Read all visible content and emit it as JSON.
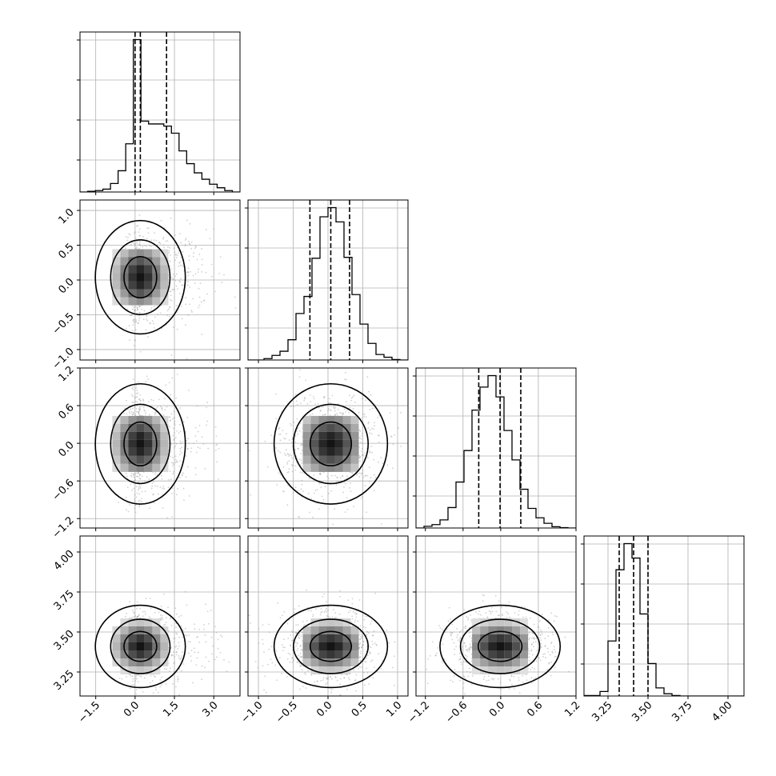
{
  "chart_data": {
    "type": "corner",
    "grid": true,
    "parameters": [
      {
        "ticks": [
          -1.5,
          0.0,
          1.5,
          3.0
        ],
        "tick_labels": [
          "−1.5",
          "0.0",
          "1.5",
          "3.0"
        ],
        "range": [
          -2.1,
          4.0
        ],
        "quantiles": [
          0.0,
          0.2,
          1.2
        ],
        "hist_counts": [
          0,
          1,
          2,
          4,
          12,
          30,
          68,
          215,
          100,
          96,
          96,
          93,
          83,
          58,
          40,
          27,
          18,
          11,
          6,
          2,
          0
        ]
      },
      {
        "ticks": [
          -1.0,
          -0.5,
          0.0,
          0.5,
          1.0
        ],
        "tick_labels": [
          "−1.0",
          "−0.5",
          "0.0",
          "0.5",
          "1.0"
        ],
        "range": [
          -1.15,
          1.15
        ],
        "quantiles": [
          -0.26,
          0.04,
          0.31
        ],
        "hist_counts": [
          0,
          0,
          3,
          10,
          19,
          44,
          101,
          138,
          221,
          311,
          331,
          300,
          223,
          142,
          78,
          36,
          12,
          6,
          1,
          0
        ]
      },
      {
        "ticks": [
          -1.2,
          -0.6,
          0.0,
          0.6,
          1.2
        ],
        "tick_labels": [
          "−1.2",
          "−0.6",
          "0.0",
          "0.6",
          "1.2"
        ],
        "range": [
          -1.35,
          1.2
        ],
        "quantiles": [
          -0.35,
          -0.01,
          0.32
        ],
        "hist_counts": [
          0,
          4,
          8,
          19,
          48,
          108,
          182,
          277,
          331,
          358,
          308,
          229,
          160,
          91,
          46,
          24,
          11,
          3,
          1,
          0
        ]
      },
      {
        "ticks": [
          3.25,
          3.5,
          3.75,
          4.0
        ],
        "tick_labels": [
          "3.25",
          "3.50",
          "3.75",
          "4.00"
        ],
        "range": [
          3.1,
          4.1
        ],
        "quantiles": [
          3.32,
          3.41,
          3.5
        ],
        "hist_counts": [
          1,
          1,
          10,
          122,
          280,
          338,
          306,
          182,
          72,
          18,
          5,
          1,
          0,
          0,
          0,
          0,
          0,
          0,
          0,
          0
        ]
      }
    ]
  }
}
